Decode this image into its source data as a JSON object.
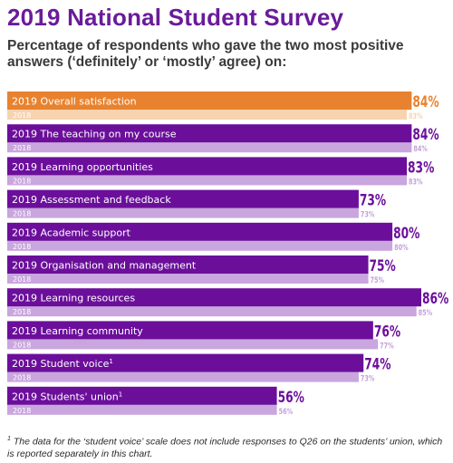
{
  "title": "2019 National Student Survey",
  "subtitle": "Percentage of respondents who gave the two most positive answers (‘definitely’ or ‘mostly’ agree) on:",
  "footnote": {
    "marker": "1",
    "text": " The data for the ‘student voice’ scale does not include responses to Q26 on the students’ union, which is reported separately in this chart."
  },
  "colors": {
    "highlight_2019": "#e8822e",
    "highlight_2018": "#f7d3b0",
    "highlight_label": "#e8822e",
    "bar_2019": "#6b0f9b",
    "bar_2018": "#c9a6de",
    "label_2019": "#6b0f9b",
    "label_2018": "#c4a2da"
  },
  "chart_data": {
    "type": "bar",
    "orientation": "horizontal",
    "title": "2019 National Student Survey",
    "subtitle": "Percentage of respondents who gave the two most positive answers (‘definitely’ or ‘mostly’ agree) on:",
    "xlim": [
      0,
      86
    ],
    "grid": false,
    "categories": [
      "Overall satisfaction",
      "The teaching on my course",
      "Learning opportunities",
      "Assessment and feedback",
      "Academic support",
      "Organisation and management",
      "Learning resources",
      "Learning community",
      "Student voice",
      "Students' union"
    ],
    "footnote_markers": [
      "",
      "",
      "",
      "",
      "",
      "",
      "",
      "",
      "1",
      "1"
    ],
    "series": [
      {
        "name": "2019",
        "values": [
          84,
          84,
          83,
          73,
          80,
          75,
          86,
          76,
          74,
          56
        ]
      },
      {
        "name": "2018",
        "values": [
          83,
          84,
          83,
          73,
          80,
          75,
          85,
          77,
          73,
          56
        ]
      }
    ],
    "value_suffix": "%",
    "highlight_index": 0
  }
}
